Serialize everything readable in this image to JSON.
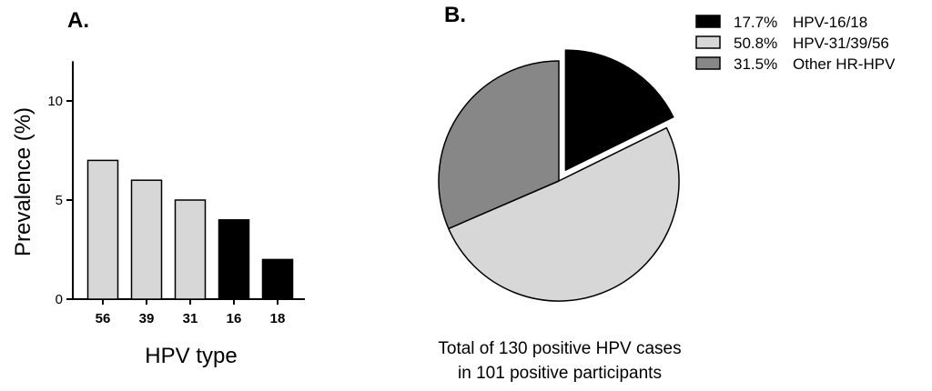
{
  "panels": {
    "a_label": "A.",
    "b_label": "B."
  },
  "colors": {
    "hr_16_18": "#000000",
    "hpv_31_39_56": "#d7d7d7",
    "other_hr": "#878787",
    "outline": "#000000"
  },
  "chart_data": [
    {
      "type": "bar",
      "panel": "A.",
      "categories": [
        "56",
        "39",
        "31",
        "16",
        "18"
      ],
      "values": [
        7,
        6,
        5,
        4,
        2
      ],
      "bar_colors": [
        "#d7d7d7",
        "#d7d7d7",
        "#d7d7d7",
        "#000000",
        "#000000"
      ],
      "xlabel": "HPV type",
      "ylabel": "Prevalence (%)",
      "ylim": [
        0,
        12
      ],
      "yticks": [
        0,
        5,
        10
      ],
      "ytick_labels": [
        "0",
        "5",
        "10"
      ],
      "grid": false
    },
    {
      "type": "pie",
      "panel": "B.",
      "slices": [
        {
          "pct_label": "17.7%",
          "name": "HPV-16/18",
          "value": 17.7,
          "color": "#000000",
          "exploded": true
        },
        {
          "pct_label": "50.8%",
          "name": "HPV-31/39/56",
          "value": 50.8,
          "color": "#d7d7d7",
          "exploded": false
        },
        {
          "pct_label": "31.5%",
          "name": "Other HR-HPV",
          "value": 31.5,
          "color": "#878787",
          "exploded": false
        }
      ],
      "legend_position": "top-right",
      "caption_lines": [
        "Total of 130 positive HPV cases",
        "in 101 positive participants"
      ]
    }
  ]
}
